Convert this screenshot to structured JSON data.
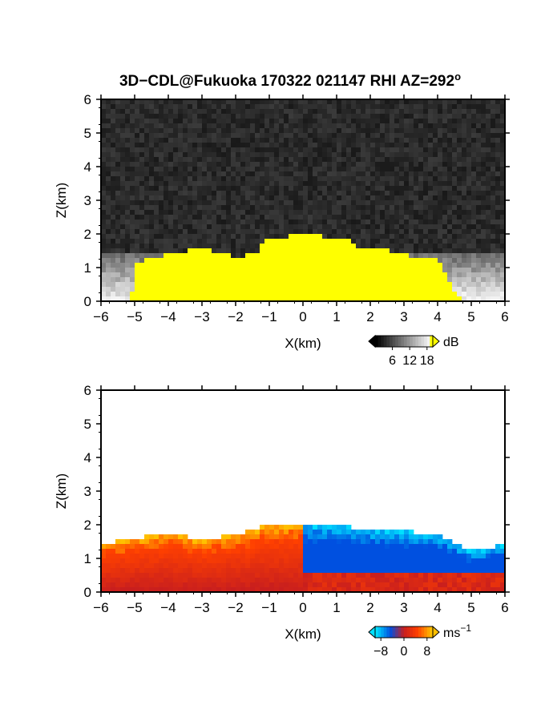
{
  "figure": {
    "title_main": "3D−CDL@Fukuoka 170322 021147 RHI AZ=292",
    "title_degree": "o"
  },
  "chart_data": [
    {
      "type": "heatmap",
      "quantity": "backscatter intensity",
      "xlabel": "X(km)",
      "ylabel": "Z(km)",
      "xlim": [
        -6,
        6
      ],
      "ylim": [
        0,
        6
      ],
      "xticks": [
        "−6",
        "−5",
        "−4",
        "−3",
        "−2",
        "−1",
        "0",
        "1",
        "2",
        "3",
        "4",
        "5",
        "6"
      ],
      "yticks": [
        "0",
        "1",
        "2",
        "3",
        "4",
        "5",
        "6"
      ],
      "colorbar": {
        "unit": "dB",
        "ticks": [
          "6",
          "12",
          "18"
        ],
        "range": [
          0,
          20
        ],
        "tick_values": [
          6,
          12,
          18
        ]
      },
      "colors": {
        "noise": "#2a2a2a",
        "saturated": "#ffff00",
        "low": "#606060",
        "high": "#f4f4f4"
      },
      "saturated_profile": [
        {
          "x": -5.1,
          "z": 0.0
        },
        {
          "x": -5.0,
          "z": 1.15
        },
        {
          "x": -4.0,
          "z": 1.4
        },
        {
          "x": -3.0,
          "z": 1.6
        },
        {
          "x": -2.0,
          "z": 1.3
        },
        {
          "x": -1.3,
          "z": 1.45
        },
        {
          "x": -1.2,
          "z": 1.8
        },
        {
          "x": 0.0,
          "z": 2.0
        },
        {
          "x": 1.3,
          "z": 1.85
        },
        {
          "x": 1.8,
          "z": 1.5
        },
        {
          "x": 2.1,
          "z": 1.6
        },
        {
          "x": 3.0,
          "z": 1.4
        },
        {
          "x": 4.0,
          "z": 1.2
        },
        {
          "x": 4.7,
          "z": 0.0
        }
      ]
    },
    {
      "type": "heatmap",
      "quantity": "radial velocity",
      "xlabel": "X(km)",
      "ylabel": "Z(km)",
      "xlim": [
        -6,
        6
      ],
      "ylim": [
        0,
        6
      ],
      "xticks": [
        "−6",
        "−5",
        "−4",
        "−3",
        "−2",
        "−1",
        "0",
        "1",
        "2",
        "3",
        "4",
        "5",
        "6"
      ],
      "yticks": [
        "0",
        "1",
        "2",
        "3",
        "4",
        "5",
        "6"
      ],
      "colorbar": {
        "unit": "ms",
        "unit_exponent": "−1",
        "ticks": [
          "−8",
          "0",
          "8"
        ],
        "range": [
          -10,
          10
        ],
        "tick_values": [
          -8,
          0,
          8
        ]
      },
      "colors": {
        "neg_far": "#00e0ff",
        "neg": "#0050e0",
        "zero": "#c81e1e",
        "pos": "#ff4000",
        "pos_far": "#ffc000"
      },
      "echo_top_km": [
        {
          "x": -6.0,
          "z": 1.4
        },
        {
          "x": -5.0,
          "z": 1.6
        },
        {
          "x": -4.0,
          "z": 1.75
        },
        {
          "x": -3.0,
          "z": 1.55
        },
        {
          "x": -2.0,
          "z": 1.7
        },
        {
          "x": -1.0,
          "z": 2.0
        },
        {
          "x": 0.0,
          "z": 2.05
        },
        {
          "x": 1.0,
          "z": 1.95
        },
        {
          "x": 2.0,
          "z": 1.9
        },
        {
          "x": 3.0,
          "z": 1.8
        },
        {
          "x": 4.0,
          "z": 1.75
        },
        {
          "x": 5.0,
          "z": 1.2
        },
        {
          "x": 6.0,
          "z": 1.4
        }
      ]
    }
  ]
}
